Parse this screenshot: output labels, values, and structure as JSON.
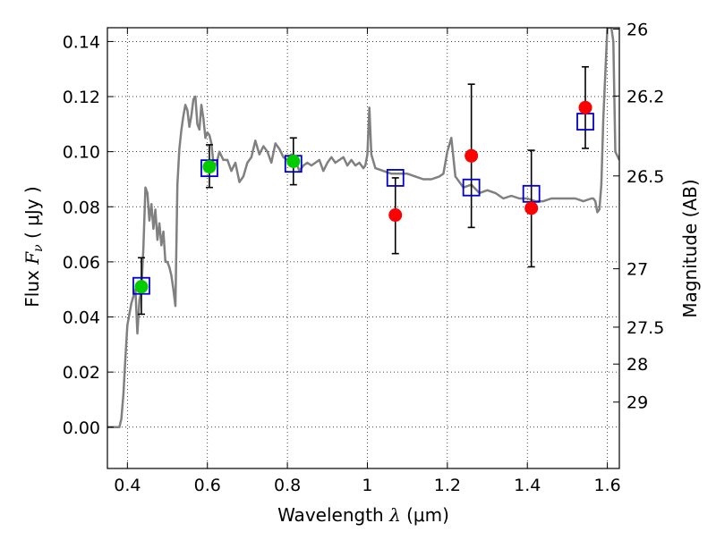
{
  "chart_data": {
    "type": "scatter",
    "title": "",
    "xlabel": {
      "text": "Wavelength ",
      "symbol": "λ",
      "unit": "(μm)"
    },
    "ylabel": {
      "text": "Flux ",
      "symbol": "F",
      "subscript": "ν",
      "unit": "( μJy )"
    },
    "y2label": "Magnitude (AB)",
    "xlim": [
      0.35,
      1.63
    ],
    "ylim": [
      -0.015,
      0.145
    ],
    "grid": true,
    "xticks": [
      0.4,
      0.6,
      0.8,
      1.0,
      1.2,
      1.4,
      1.6
    ],
    "xtick_labels": [
      "0.4",
      "0.6",
      "0.8",
      "1",
      "1.2",
      "1.4",
      "1.6"
    ],
    "yticks": [
      0.0,
      0.02,
      0.04,
      0.06,
      0.08,
      0.1,
      0.12,
      0.14
    ],
    "ytick_labels": [
      "0.00",
      "0.02",
      "0.04",
      "0.06",
      "0.08",
      "0.10",
      "0.12",
      "0.14"
    ],
    "y2ticks": [
      {
        "label": "26",
        "flux": 0.1445
      },
      {
        "label": "26.2",
        "flux": 0.1202
      },
      {
        "label": "26.5",
        "flux": 0.0912
      },
      {
        "label": "27",
        "flux": 0.0575
      },
      {
        "label": "27.5",
        "flux": 0.0363
      },
      {
        "label": "28",
        "flux": 0.0229
      },
      {
        "label": "29",
        "flux": 0.0091
      }
    ],
    "series": [
      {
        "kind": "line",
        "color": "#808080",
        "x": [
          0.35,
          0.38,
          0.385,
          0.39,
          0.395,
          0.4,
          0.41,
          0.42,
          0.425,
          0.43,
          0.435,
          0.44,
          0.445,
          0.45,
          0.455,
          0.46,
          0.465,
          0.47,
          0.475,
          0.48,
          0.485,
          0.49,
          0.495,
          0.5,
          0.505,
          0.51,
          0.515,
          0.52,
          0.525,
          0.53,
          0.535,
          0.54,
          0.545,
          0.55,
          0.555,
          0.56,
          0.565,
          0.57,
          0.575,
          0.58,
          0.585,
          0.59,
          0.595,
          0.6,
          0.605,
          0.61,
          0.615,
          0.62,
          0.625,
          0.63,
          0.64,
          0.65,
          0.66,
          0.67,
          0.68,
          0.69,
          0.7,
          0.71,
          0.72,
          0.73,
          0.74,
          0.75,
          0.76,
          0.77,
          0.78,
          0.79,
          0.8,
          0.81,
          0.82,
          0.83,
          0.84,
          0.85,
          0.86,
          0.87,
          0.88,
          0.89,
          0.9,
          0.91,
          0.92,
          0.93,
          0.94,
          0.95,
          0.96,
          0.97,
          0.98,
          0.99,
          0.995,
          1.0,
          1.005,
          1.01,
          1.02,
          1.04,
          1.06,
          1.08,
          1.1,
          1.12,
          1.14,
          1.16,
          1.18,
          1.19,
          1.2,
          1.21,
          1.22,
          1.24,
          1.26,
          1.28,
          1.3,
          1.32,
          1.34,
          1.36,
          1.38,
          1.4,
          1.42,
          1.44,
          1.46,
          1.48,
          1.5,
          1.52,
          1.54,
          1.56,
          1.565,
          1.57,
          1.575,
          1.58,
          1.585,
          1.59,
          1.6,
          1.61,
          1.615,
          1.62,
          1.63
        ],
        "y": [
          0.0,
          0.0,
          0.003,
          0.012,
          0.025,
          0.037,
          0.045,
          0.05,
          0.034,
          0.046,
          0.05,
          0.065,
          0.087,
          0.085,
          0.075,
          0.081,
          0.072,
          0.079,
          0.068,
          0.074,
          0.066,
          0.071,
          0.06,
          0.06,
          0.058,
          0.055,
          0.05,
          0.044,
          0.088,
          0.101,
          0.108,
          0.113,
          0.117,
          0.115,
          0.109,
          0.113,
          0.119,
          0.12,
          0.11,
          0.108,
          0.117,
          0.112,
          0.105,
          0.107,
          0.106,
          0.103,
          0.096,
          0.095,
          0.097,
          0.1,
          0.097,
          0.097,
          0.093,
          0.096,
          0.089,
          0.091,
          0.096,
          0.098,
          0.104,
          0.099,
          0.102,
          0.1,
          0.096,
          0.103,
          0.101,
          0.098,
          0.097,
          0.099,
          0.097,
          0.093,
          0.095,
          0.096,
          0.095,
          0.096,
          0.097,
          0.093,
          0.096,
          0.098,
          0.096,
          0.097,
          0.098,
          0.095,
          0.097,
          0.095,
          0.096,
          0.094,
          0.095,
          0.099,
          0.116,
          0.099,
          0.094,
          0.093,
          0.092,
          0.092,
          0.092,
          0.091,
          0.09,
          0.09,
          0.091,
          0.092,
          0.1,
          0.105,
          0.091,
          0.087,
          0.088,
          0.085,
          0.086,
          0.085,
          0.083,
          0.084,
          0.083,
          0.083,
          0.082,
          0.082,
          0.083,
          0.083,
          0.083,
          0.083,
          0.082,
          0.083,
          0.083,
          0.082,
          0.078,
          0.079,
          0.088,
          0.112,
          0.145,
          0.145,
          0.14,
          0.1,
          0.097
        ]
      },
      {
        "kind": "points",
        "name": "",
        "marker": "square",
        "color": "#0000cc",
        "x": [
          0.435,
          0.605,
          0.815,
          1.07,
          1.26,
          1.41,
          1.545
        ],
        "y": [
          0.0513,
          0.094,
          0.0956,
          0.0905,
          0.087,
          0.0847,
          0.1109
        ]
      },
      {
        "kind": "points",
        "name": "",
        "marker": "circle",
        "color": "#00cc00",
        "x": [
          0.435,
          0.605,
          0.815
        ],
        "y": [
          0.051,
          0.0945,
          0.0965
        ],
        "yerr_low": [
          0.041,
          0.087,
          0.088
        ],
        "yerr_high": [
          0.0615,
          0.1025,
          0.105
        ]
      },
      {
        "kind": "points",
        "name": "",
        "marker": "circle",
        "color": "#ff0000",
        "x": [
          1.07,
          1.26,
          1.41,
          1.545
        ],
        "y": [
          0.077,
          0.0985,
          0.0795,
          0.116
        ],
        "yerr_low": [
          0.063,
          0.0725,
          0.0582,
          0.1012
        ],
        "yerr_high": [
          0.0905,
          0.1245,
          0.1005,
          0.1308
        ]
      }
    ]
  }
}
